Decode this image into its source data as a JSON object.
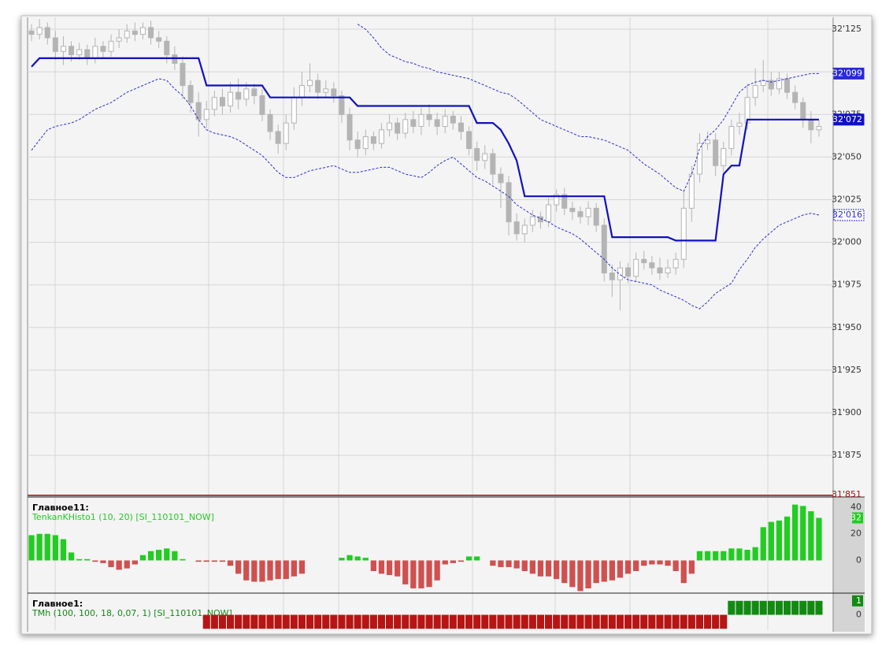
{
  "chart_data": [
    {
      "type": "candlestick",
      "open": [
        32124,
        32122,
        32126,
        32120,
        32112,
        32115,
        32110,
        32113,
        32108,
        32115,
        32112,
        32118,
        32120,
        32124,
        32122,
        32126,
        32120,
        32118,
        32110,
        32105,
        32092,
        32082,
        32072,
        32078,
        32085,
        32080,
        32088,
        32084,
        32090,
        32086,
        32075,
        32065,
        32058,
        32070,
        32085,
        32092,
        32095,
        32088,
        32090,
        32086,
        32075,
        32060,
        32055,
        32062,
        32058,
        32066,
        32070,
        32064,
        32072,
        32068,
        32075,
        32072,
        32068,
        32074,
        32070,
        32065,
        32055,
        32048,
        32052,
        32040,
        32035,
        32012,
        32005,
        32010,
        32015,
        32012,
        32022,
        32028,
        32020,
        32018,
        32015,
        32020,
        32010,
        31982,
        31978,
        31985,
        31980,
        31990,
        31988,
        31985,
        31982,
        31985,
        31990,
        32020,
        32040,
        32058,
        32060,
        32045,
        32055,
        32068,
        32070,
        32085,
        32092,
        32095,
        32090,
        32096,
        32088,
        32082,
        32072,
        32066
      ],
      "high": [
        32128,
        32131,
        32129,
        32124,
        32121,
        32118,
        32117,
        32116,
        32120,
        32118,
        32122,
        32125,
        32128,
        32129,
        32129,
        32130,
        32124,
        32121,
        32115,
        32109,
        32095,
        32088,
        32083,
        32089,
        32090,
        32094,
        32096,
        32094,
        32093,
        32090,
        32078,
        32069,
        32075,
        32091,
        32100,
        32105,
        32099,
        32095,
        32094,
        32089,
        32079,
        32065,
        32066,
        32065,
        32070,
        32075,
        32073,
        32076,
        32077,
        32079,
        32081,
        32076,
        32078,
        32077,
        32074,
        32068,
        32059,
        32057,
        32055,
        32044,
        32039,
        32017,
        32014,
        32019,
        32018,
        32026,
        32031,
        32032,
        32024,
        32021,
        32024,
        32023,
        32014,
        31987,
        31989,
        31988,
        31994,
        31995,
        31992,
        31991,
        31990,
        31994,
        32030,
        32045,
        32064,
        32065,
        32064,
        32059,
        32072,
        32076,
        32093,
        32102,
        32107,
        32100,
        32100,
        32099,
        32092,
        32085,
        32077,
        32072
      ],
      "low": [
        32118,
        32119,
        32116,
        32107,
        32104,
        32106,
        32107,
        32104,
        32105,
        32108,
        32109,
        32114,
        32117,
        32118,
        32119,
        32116,
        32114,
        32105,
        32101,
        32084,
        32076,
        32062,
        32067,
        32074,
        32075,
        32076,
        32078,
        32080,
        32081,
        32071,
        32060,
        32052,
        32054,
        32066,
        32080,
        32088,
        32084,
        32085,
        32082,
        32070,
        32054,
        32050,
        32051,
        32054,
        32055,
        32062,
        32060,
        32061,
        32064,
        32063,
        32068,
        32063,
        32064,
        32066,
        32060,
        32051,
        32042,
        32043,
        32034,
        32020,
        32004,
        32001,
        32000,
        32006,
        32008,
        32009,
        32018,
        32016,
        32013,
        32011,
        32010,
        32006,
        31977,
        31968,
        31960,
        31976,
        31977,
        31984,
        31981,
        31978,
        31979,
        31981,
        31985,
        32012,
        32035,
        32054,
        32039,
        32041,
        32051,
        32063,
        32066,
        32080,
        32088,
        32086,
        32087,
        32084,
        32078,
        32067,
        32058,
        32062
      ],
      "close": [
        32122,
        32126,
        32120,
        32112,
        32115,
        32110,
        32113,
        32108,
        32115,
        32112,
        32118,
        32120,
        32124,
        32122,
        32126,
        32120,
        32118,
        32110,
        32105,
        32092,
        32082,
        32072,
        32078,
        32085,
        32080,
        32088,
        32084,
        32090,
        32086,
        32075,
        32065,
        32058,
        32070,
        32085,
        32092,
        32095,
        32088,
        32090,
        32086,
        32075,
        32060,
        32055,
        32062,
        32058,
        32066,
        32070,
        32064,
        32072,
        32068,
        32075,
        32072,
        32068,
        32074,
        32070,
        32065,
        32055,
        32048,
        32052,
        32040,
        32035,
        32012,
        32005,
        32010,
        32015,
        32012,
        32022,
        32028,
        32020,
        32018,
        32015,
        32020,
        32010,
        31982,
        31978,
        31985,
        31980,
        31990,
        31988,
        31985,
        31982,
        31985,
        31990,
        32020,
        32040,
        32058,
        32060,
        32045,
        32055,
        32068,
        32070,
        32085,
        32092,
        32095,
        32090,
        32096,
        32088,
        32082,
        32072,
        32066,
        32068
      ],
      "candle_color": "#b4b4b4",
      "series": [
        {
          "color": "#2a2ad6",
          "dashed": true,
          "last_label": "32'099",
          "values": [
            null,
            null,
            null,
            null,
            null,
            null,
            null,
            null,
            null,
            null,
            null,
            null,
            null,
            null,
            null,
            null,
            null,
            null,
            null,
            null,
            null,
            null,
            null,
            null,
            null,
            null,
            null,
            null,
            null,
            null,
            null,
            null,
            null,
            null,
            null,
            null,
            null,
            null,
            null,
            null,
            null,
            32128,
            32125,
            32120,
            32114,
            32110,
            32108,
            32106,
            32105,
            32103,
            32102,
            32100,
            32099,
            32098,
            32097,
            32096,
            32094,
            32092,
            32090,
            32088,
            32087,
            32084,
            32080,
            32076,
            32072,
            32070,
            32068,
            32066,
            32064,
            32062,
            32062,
            32061,
            32060,
            32058,
            32056,
            32054,
            32050,
            32046,
            32043,
            32040,
            32036,
            32032,
            32030,
            32040,
            32055,
            32062,
            32066,
            32072,
            32080,
            32088,
            32092,
            32094,
            32095,
            32094,
            32095,
            32096,
            32097,
            32098,
            32099,
            32099
          ]
        },
        {
          "color": "#1010c0",
          "dashed": false,
          "last_label": "32'072",
          "values": [
            32103,
            32108,
            32108,
            32108,
            32108,
            32108,
            32108,
            32108,
            32108,
            32108,
            32108,
            32108,
            32108,
            32108,
            32108,
            32108,
            32108,
            32108,
            32108,
            32108,
            32108,
            32108,
            32092,
            32092,
            32092,
            32092,
            32092,
            32092,
            32092,
            32092,
            32085,
            32085,
            32085,
            32085,
            32085,
            32085,
            32085,
            32085,
            32085,
            32085,
            32085,
            32080,
            32080,
            32080,
            32080,
            32080,
            32080,
            32080,
            32080,
            32080,
            32080,
            32080,
            32080,
            32080,
            32080,
            32080,
            32070,
            32070,
            32070,
            32066,
            32058,
            32048,
            32027,
            32027,
            32027,
            32027,
            32027,
            32027,
            32027,
            32027,
            32027,
            32027,
            32027,
            32003,
            32003,
            32003,
            32003,
            32003,
            32003,
            32003,
            32003,
            32001,
            32001,
            32001,
            32001,
            32001,
            32001,
            32040,
            32045,
            32045,
            32072,
            32072,
            32072,
            32072,
            32072,
            32072,
            32072,
            32072,
            32072,
            32072
          ]
        },
        {
          "color": "#2a2ad6",
          "dashed": true,
          "last_label": "32'016",
          "values": [
            32054,
            32060,
            32066,
            32068,
            32069,
            32070,
            32072,
            32075,
            32078,
            32080,
            32082,
            32085,
            32088,
            32090,
            32092,
            32094,
            32096,
            32095,
            32090,
            32086,
            32080,
            32072,
            32066,
            32064,
            32063,
            32062,
            32060,
            32057,
            32054,
            32051,
            32046,
            32041,
            32038,
            32038,
            32040,
            32042,
            32043,
            32044,
            32045,
            32043,
            32041,
            32041,
            32042,
            32043,
            32044,
            32044,
            32042,
            32040,
            32039,
            32038,
            32041,
            32045,
            32048,
            32050,
            32046,
            32042,
            32038,
            32036,
            32033,
            32030,
            32027,
            32022,
            32019,
            32016,
            32014,
            32012,
            32009,
            32007,
            32005,
            32002,
            31998,
            31994,
            31990,
            31985,
            31981,
            31978,
            31977,
            31976,
            31975,
            31972,
            31970,
            31968,
            31966,
            31963,
            31961,
            31965,
            31970,
            31973,
            31976,
            31984,
            31990,
            31997,
            32002,
            32006,
            32010,
            32012,
            32014,
            32016,
            32017,
            32016
          ]
        }
      ],
      "ylim": [
        31851,
        32132
      ],
      "yticks": [
        {
          "value": 31851,
          "label": "31'851"
        },
        {
          "value": 31875,
          "label": "31'875"
        },
        {
          "value": 31900,
          "label": "31'900"
        },
        {
          "value": 31925,
          "label": "31'925"
        },
        {
          "value": 31950,
          "label": "31'950"
        },
        {
          "value": 31975,
          "label": "31'975"
        },
        {
          "value": 32000,
          "label": "32'000"
        },
        {
          "value": 32025,
          "label": "32'025"
        },
        {
          "value": 32050,
          "label": "32'050"
        },
        {
          "value": 32075,
          "label": "32'075"
        },
        {
          "value": 32100,
          "label": "32'100"
        },
        {
          "value": 32125,
          "label": "32'125"
        }
      ],
      "grid": true
    },
    {
      "type": "bar",
      "title": "Главное11:",
      "subtitle": "TenkanKHisto1 (10, 20) [SI_110101_NOW]",
      "values": [
        19,
        20,
        20,
        19,
        16,
        6,
        1,
        1,
        -1,
        -2,
        -5,
        -7,
        -6,
        -3,
        4,
        7,
        8,
        9,
        7,
        1,
        0,
        -1,
        -1,
        -1,
        -1,
        -4,
        -10,
        -15,
        -16,
        -16,
        -15,
        -14,
        -14,
        -12,
        -10,
        0,
        0,
        0,
        0,
        2,
        4,
        3,
        2,
        -8,
        -10,
        -11,
        -12,
        -18,
        -21,
        -21,
        -20,
        -15,
        -3,
        -2,
        -1,
        3,
        3,
        0,
        -4,
        -5,
        -5,
        -6,
        -8,
        -10,
        -12,
        -12,
        -14,
        -17,
        -20,
        -23,
        -21,
        -17,
        -16,
        -15,
        -13,
        -10,
        -8,
        -4,
        -3,
        -3,
        -4,
        -8,
        -17,
        -10,
        7,
        7,
        7,
        7,
        9,
        9,
        8,
        10,
        25,
        29,
        30,
        33,
        42,
        41,
        37,
        32
      ],
      "positive_color": "#22cc22",
      "negative_color": "#d05050",
      "ylim": [
        -24,
        46.5
      ],
      "yticks": [
        0,
        20,
        40
      ],
      "grid": false
    },
    {
      "type": "bar",
      "title": "Главное1:",
      "subtitle": "TMh (100, 100, 18, 0,07, 1) [SI_110101_NOW]",
      "values": [
        0,
        0,
        0,
        0,
        0,
        0,
        0,
        0,
        0,
        0,
        0,
        0,
        0,
        0,
        0,
        0,
        0,
        0,
        0,
        0,
        0,
        0,
        -1,
        -1,
        -1,
        -1,
        -1,
        -1,
        -1,
        -1,
        -1,
        -1,
        -1,
        -1,
        -1,
        -1,
        -1,
        -1,
        -1,
        -1,
        -1,
        -1,
        -1,
        -1,
        -1,
        -1,
        -1,
        -1,
        -1,
        -1,
        -1,
        -1,
        -1,
        -1,
        -1,
        -1,
        -1,
        -1,
        -1,
        -1,
        -1,
        -1,
        -1,
        -1,
        -1,
        -1,
        -1,
        -1,
        -1,
        -1,
        -1,
        -1,
        -1,
        -1,
        -1,
        -1,
        -1,
        -1,
        -1,
        -1,
        -1,
        -1,
        -1,
        -1,
        -1,
        -1,
        -1,
        -1,
        1,
        1,
        1,
        1,
        1,
        1,
        1,
        1,
        1,
        1,
        1,
        1
      ],
      "positive_color": "#128a12",
      "negative_color": "#b81414",
      "ylim": [
        -1.1,
        1.44
      ],
      "yticks": [
        0
      ],
      "grid": false
    }
  ]
}
